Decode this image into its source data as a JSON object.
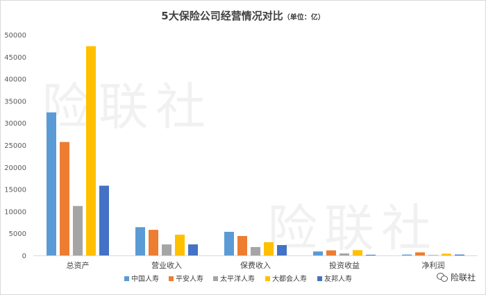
{
  "chart_data": {
    "type": "bar",
    "title": "5大保险公司经营情况对比",
    "unit": "（单位：亿）",
    "categories": [
      "总资产",
      "营业收入",
      "保费收入",
      "投资收益",
      "净利润"
    ],
    "series": [
      {
        "name": "中国人寿",
        "color": "#5b9bd5",
        "values": [
          32400,
          6400,
          5350,
          900,
          200
        ]
      },
      {
        "name": "平安人寿",
        "color": "#ed7d31",
        "values": [
          25700,
          5800,
          4400,
          1150,
          700
        ]
      },
      {
        "name": "太平洋人寿",
        "color": "#a5a5a5",
        "values": [
          11200,
          2500,
          1900,
          450,
          100
        ]
      },
      {
        "name": "大都会人寿",
        "color": "#ffc000",
        "values": [
          47400,
          4700,
          3000,
          1200,
          400
        ]
      },
      {
        "name": "友邦人寿",
        "color": "#4472c4",
        "values": [
          15800,
          2500,
          2350,
          150,
          200
        ]
      }
    ],
    "ylim": [
      0,
      50000
    ],
    "yticks": [
      0,
      5000,
      10000,
      15000,
      20000,
      25000,
      30000,
      35000,
      40000,
      45000,
      50000
    ],
    "grid": "none",
    "legend_position": "bottom"
  },
  "watermark": "险联社",
  "logo_text": "险联社"
}
